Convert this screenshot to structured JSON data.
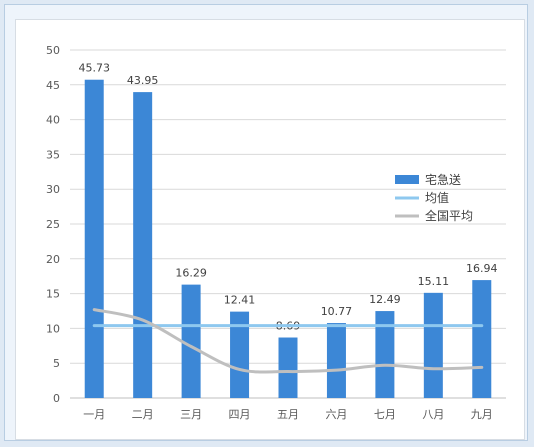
{
  "chart_data": {
    "type": "bar",
    "title": "",
    "xlabel": "",
    "ylabel": "",
    "categories": [
      "一月",
      "二月",
      "三月",
      "四月",
      "五月",
      "六月",
      "七月",
      "八月",
      "九月"
    ],
    "ylim": [
      0,
      50
    ],
    "yticks": [
      0,
      5,
      10,
      15,
      20,
      25,
      30,
      35,
      40,
      45,
      50
    ],
    "grid": true,
    "legend_position": "right",
    "series": [
      {
        "name": "宅急送",
        "kind": "bar",
        "color": "#3c87d6",
        "values": [
          45.73,
          43.95,
          16.29,
          12.41,
          8.69,
          10.77,
          12.49,
          15.11,
          16.94
        ],
        "labels": [
          "45.73",
          "43.95",
          "16.29",
          "12.41",
          "8.69",
          "10.77",
          "12.49",
          "15.11",
          "16.94"
        ]
      },
      {
        "name": "均值",
        "kind": "line",
        "color": "#8ec8ef",
        "values": [
          10.4,
          10.4,
          10.4,
          10.4,
          10.4,
          10.4,
          10.4,
          10.4,
          10.4
        ]
      },
      {
        "name": "全国平均",
        "kind": "line",
        "color": "#bfbfbf",
        "values": [
          12.7,
          11.2,
          7.4,
          4.1,
          3.8,
          4.0,
          4.7,
          4.2,
          4.4
        ]
      }
    ]
  }
}
